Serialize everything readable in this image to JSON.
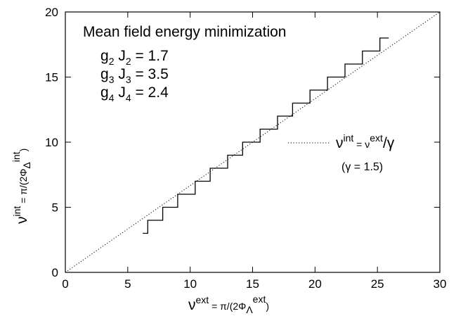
{
  "chart_data": {
    "type": "line",
    "xlabel": {
      "main": "ν",
      "sup": "ext",
      "eq": " = π/(2Φ",
      "sub": "Λ",
      "sup2": "ext",
      "close": ")"
    },
    "ylabel": {
      "main": "ν",
      "sup": "int",
      "eq": " = π/(2Φ",
      "sub": "Δ",
      "sup2": "int",
      "close": ")"
    },
    "xlim": [
      0,
      30
    ],
    "ylim": [
      0,
      20
    ],
    "x_ticks": [
      0,
      5,
      10,
      15,
      20,
      25,
      30
    ],
    "y_ticks": [
      0,
      5,
      10,
      15,
      20
    ],
    "grid": false,
    "annotation": {
      "title": "Mean field energy minimization",
      "params": [
        {
          "g": "g",
          "g_sub": "2",
          "j": "J",
          "j_sub": "2",
          "value": "= 1.7"
        },
        {
          "g": "g",
          "g_sub": "3",
          "j": "J",
          "j_sub": "3",
          "value": "= 3.5"
        },
        {
          "g": "g",
          "g_sub": "4",
          "j": "J",
          "j_sub": "4",
          "value": "= 2.4"
        }
      ]
    },
    "legend": {
      "position": "right",
      "entry": {
        "lhs": "ν",
        "lhs_sup": "int",
        "eq": " = ν",
        "rhs_sup": "ext",
        "div": "/γ"
      },
      "note": "(γ = 1.5)"
    },
    "series": [
      {
        "style": "solid",
        "type": "step",
        "points": [
          [
            6.2,
            3
          ],
          [
            6.6,
            3
          ],
          [
            6.6,
            4
          ],
          [
            7.8,
            4
          ],
          [
            7.8,
            5
          ],
          [
            9.0,
            5
          ],
          [
            9.0,
            6
          ],
          [
            10.4,
            6
          ],
          [
            10.4,
            7
          ],
          [
            11.6,
            7
          ],
          [
            11.6,
            8
          ],
          [
            13.0,
            8
          ],
          [
            13.0,
            9
          ],
          [
            14.2,
            9
          ],
          [
            14.2,
            10
          ],
          [
            15.6,
            10
          ],
          [
            15.6,
            11
          ],
          [
            17.0,
            11
          ],
          [
            17.0,
            12
          ],
          [
            18.2,
            12
          ],
          [
            18.2,
            13
          ],
          [
            19.6,
            13
          ],
          [
            19.6,
            14
          ],
          [
            21.0,
            14
          ],
          [
            21.0,
            15
          ],
          [
            22.4,
            15
          ],
          [
            22.4,
            16
          ],
          [
            23.8,
            16
          ],
          [
            23.8,
            17
          ],
          [
            25.2,
            17
          ],
          [
            25.2,
            18
          ],
          [
            25.9,
            18
          ]
        ]
      },
      {
        "style": "dotted",
        "type": "line",
        "points": [
          [
            0,
            0
          ],
          [
            30,
            20
          ]
        ]
      }
    ]
  }
}
